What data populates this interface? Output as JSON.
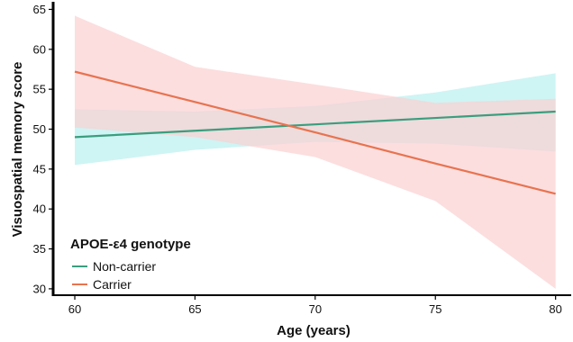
{
  "chart_data": {
    "type": "line",
    "title": "",
    "xlabel": "Age (years)",
    "ylabel": "Visuospatial memory score",
    "xlim": [
      59.1,
      80.5
    ],
    "ylim": [
      29.2,
      65.5
    ],
    "x_ticks": [
      60,
      65,
      70,
      75,
      80
    ],
    "y_ticks": [
      30,
      35,
      40,
      45,
      50,
      55,
      60,
      65
    ],
    "grid": false,
    "legend": {
      "title": "APOE-ε4 genotype",
      "position": "bottom-left"
    },
    "series": [
      {
        "name": "Non-carrier",
        "color": "#3a9e7e",
        "band_color": "#bff0f0",
        "x": [
          60,
          65,
          70,
          75,
          80
        ],
        "y": [
          49.0,
          49.8,
          50.6,
          51.4,
          52.2
        ],
        "ci_lower": [
          45.5,
          47.4,
          48.4,
          48.2,
          47.2
        ],
        "ci_upper": [
          52.5,
          52.2,
          52.9,
          54.6,
          57.0
        ]
      },
      {
        "name": "Carrier",
        "color": "#e8734f",
        "band_color": "#fbd0d2",
        "x": [
          60,
          65,
          70,
          75,
          80
        ],
        "y": [
          57.2,
          53.4,
          49.6,
          45.7,
          41.9
        ],
        "ci_lower": [
          50.2,
          49.0,
          46.5,
          41.0,
          30.0
        ],
        "ci_upper": [
          64.2,
          57.8,
          55.6,
          53.3,
          53.8
        ]
      }
    ]
  }
}
